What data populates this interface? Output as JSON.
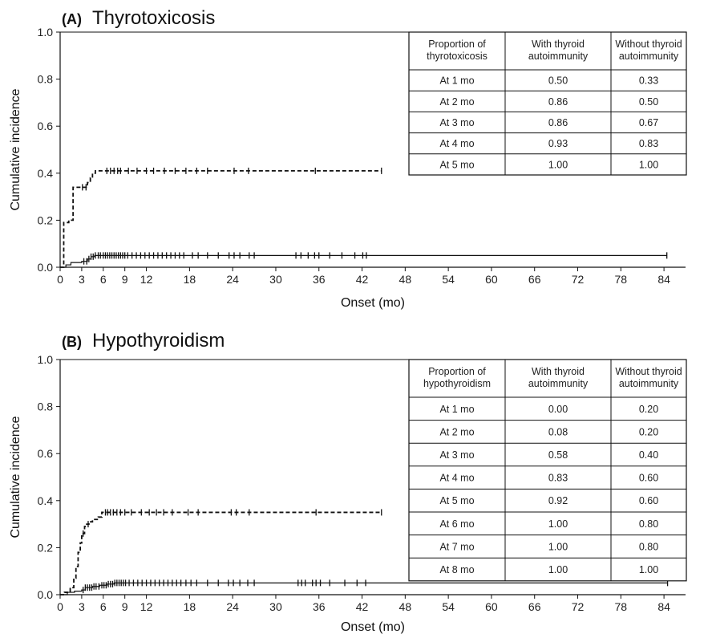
{
  "chart_data": [
    {
      "type": "line",
      "panel_letter": "(A)",
      "title": "Thyrotoxicosis",
      "xlabel": "Onset (mo)",
      "ylabel": "Cumulative incidence",
      "xlim": [
        0,
        87
      ],
      "ylim": [
        0,
        1.0
      ],
      "xticks": [
        "0",
        "3",
        "6",
        "9",
        "12",
        "18",
        "24",
        "30",
        "36",
        "42",
        "48",
        "54",
        "60",
        "66",
        "72",
        "78",
        "84"
      ],
      "yticks": [
        "0.0",
        "0.2",
        "0.4",
        "0.6",
        "0.8",
        "1.0"
      ],
      "grid": false,
      "series": [
        {
          "line_style": "dashed",
          "steps": [
            [
              0,
              0
            ],
            [
              0.5,
              0.19
            ],
            [
              1.2,
              0.2
            ],
            [
              1.8,
              0.34
            ],
            [
              3.5,
              0.34
            ],
            [
              3.8,
              0.36
            ],
            [
              4.2,
              0.38
            ],
            [
              4.5,
              0.4
            ],
            [
              4.9,
              0.41
            ],
            [
              44.7,
              0.41
            ]
          ],
          "censor_x": [
            3.1,
            3.6,
            6.5,
            7.0,
            7.5,
            8.0,
            8.4,
            9.5,
            10.7,
            12.0,
            13.0,
            14.5,
            16.0,
            17.5,
            19.0,
            20.5,
            24.2,
            26.2,
            35.5,
            44.7
          ]
        },
        {
          "line_style": "solid",
          "steps": [
            [
              0,
              0
            ],
            [
              0.8,
              0.01
            ],
            [
              1.5,
              0.02
            ],
            [
              3.0,
              0.025
            ],
            [
              3.8,
              0.035
            ],
            [
              4.3,
              0.045
            ],
            [
              4.8,
              0.05
            ],
            [
              84.4,
              0.05
            ]
          ],
          "censor_x": [
            3.3,
            3.7,
            4.0,
            4.3,
            4.6,
            4.9,
            5.3,
            5.6,
            6.0,
            6.3,
            6.6,
            6.9,
            7.2,
            7.5,
            7.8,
            8.1,
            8.4,
            8.7,
            9.0,
            9.4,
            10.0,
            10.6,
            11.2,
            11.8,
            12.4,
            13.0,
            13.6,
            14.2,
            14.8,
            15.4,
            16.0,
            16.6,
            17.2,
            18.4,
            19.2,
            20.5,
            22.0,
            23.5,
            24.2,
            25.0,
            26.3,
            27.0,
            32.8,
            33.5,
            34.5,
            35.4,
            36.0,
            37.5,
            39.2,
            41.0,
            42.1,
            42.6,
            84.4
          ]
        }
      ],
      "table": {
        "headers": [
          "Proportion of thyrotoxicosis",
          "With thyroid autoimmunity",
          "Without thyroid autoimmunity"
        ],
        "rows": [
          [
            "At 1 mo",
            "0.50",
            "0.33"
          ],
          [
            "At 2 mo",
            "0.86",
            "0.50"
          ],
          [
            "At 3 mo",
            "0.86",
            "0.67"
          ],
          [
            "At 4 mo",
            "0.93",
            "0.83"
          ],
          [
            "At 5 mo",
            "1.00",
            "1.00"
          ]
        ]
      }
    },
    {
      "type": "line",
      "panel_letter": "(B)",
      "title": "Hypothyroidism",
      "xlabel": "Onset (mo)",
      "ylabel": "Cumulative incidence",
      "xlim": [
        0,
        87
      ],
      "ylim": [
        0,
        1.0
      ],
      "xticks": [
        "0",
        "3",
        "6",
        "9",
        "12",
        "18",
        "24",
        "30",
        "36",
        "42",
        "48",
        "54",
        "60",
        "66",
        "72",
        "78",
        "84"
      ],
      "yticks": [
        "0.0",
        "0.2",
        "0.4",
        "0.6",
        "0.8",
        "1.0"
      ],
      "grid": false,
      "series": [
        {
          "line_style": "dashed",
          "steps": [
            [
              0,
              0
            ],
            [
              0.6,
              0.01
            ],
            [
              1.4,
              0.03
            ],
            [
              1.9,
              0.07
            ],
            [
              2.2,
              0.12
            ],
            [
              2.5,
              0.18
            ],
            [
              2.8,
              0.22
            ],
            [
              3.0,
              0.26
            ],
            [
              3.4,
              0.29
            ],
            [
              3.7,
              0.3
            ],
            [
              4.0,
              0.31
            ],
            [
              4.5,
              0.32
            ],
            [
              5.3,
              0.33
            ],
            [
              5.8,
              0.35
            ],
            [
              44.7,
              0.35
            ]
          ],
          "censor_x": [
            3.2,
            3.9,
            6.3,
            6.6,
            7.0,
            7.4,
            7.9,
            8.4,
            9.0,
            9.9,
            11.3,
            12.4,
            13.4,
            14.4,
            15.6,
            17.8,
            19.2,
            23.8,
            24.5,
            26.3,
            35.6,
            44.7
          ]
        },
        {
          "line_style": "solid",
          "steps": [
            [
              0,
              0
            ],
            [
              1.0,
              0.01
            ],
            [
              2.0,
              0.015
            ],
            [
              3.0,
              0.02
            ],
            [
              3.5,
              0.03
            ],
            [
              4.5,
              0.035
            ],
            [
              5.5,
              0.04
            ],
            [
              6.5,
              0.045
            ],
            [
              7.5,
              0.05
            ],
            [
              84.5,
              0.05
            ]
          ],
          "censor_x": [
            3.2,
            3.5,
            3.8,
            4.1,
            4.4,
            4.7,
            5.0,
            5.4,
            5.8,
            6.1,
            6.4,
            6.7,
            7.0,
            7.3,
            7.6,
            7.9,
            8.2,
            8.5,
            8.8,
            9.1,
            9.6,
            10.2,
            10.8,
            11.4,
            12.0,
            12.6,
            13.2,
            13.8,
            14.4,
            15.0,
            15.6,
            16.2,
            16.8,
            17.5,
            18.2,
            19.0,
            20.5,
            22.0,
            23.4,
            24.1,
            25.0,
            26.1,
            27.0,
            33.1,
            33.6,
            34.1,
            35.1,
            35.6,
            36.2,
            37.5,
            39.6,
            41.3,
            42.5,
            84.5
          ]
        },
        {
          "line_style": "solid",
          "steps": [],
          "censor_x": []
        }
      ],
      "table": {
        "headers": [
          "Proportion of hypothyroidism",
          "With thyroid autoimmunity",
          "Without thyroid autoimmunity"
        ],
        "rows": [
          [
            "At 1 mo",
            "0.00",
            "0.20"
          ],
          [
            "At 2 mo",
            "0.08",
            "0.20"
          ],
          [
            "At 3 mo",
            "0.58",
            "0.40"
          ],
          [
            "At 4 mo",
            "0.83",
            "0.60"
          ],
          [
            "At 5 mo",
            "0.92",
            "0.60"
          ],
          [
            "At 6 mo",
            "1.00",
            "0.80"
          ],
          [
            "At 7 mo",
            "1.00",
            "0.80"
          ],
          [
            "At 8 mo",
            "1.00",
            "1.00"
          ]
        ]
      }
    }
  ]
}
